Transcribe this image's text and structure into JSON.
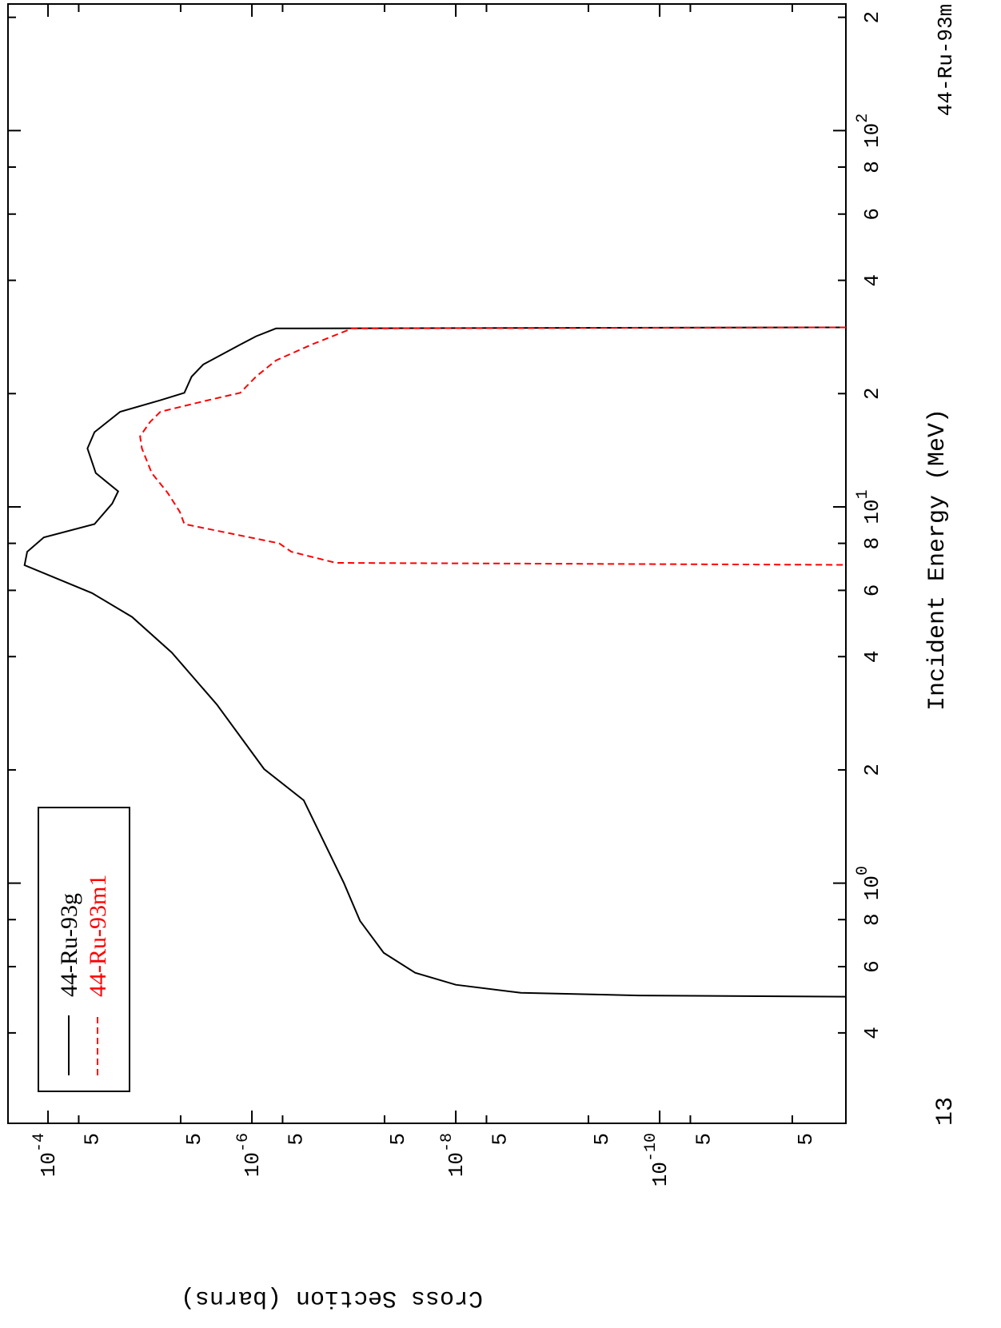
{
  "chart_data": {
    "type": "line",
    "x_label": "Incident Energy (MeV)",
    "y_label": "Cross Section (barns)",
    "annotations": [
      "44-Ru-93m",
      "13"
    ],
    "xscale": "log",
    "yscale": "log",
    "xlim": [
      0.23,
      217
    ],
    "ylim": [
      0.000247,
      1.49e-12
    ],
    "xticks": [
      {
        "value": 0.4,
        "label": "4"
      },
      {
        "value": 0.6,
        "label": "6"
      },
      {
        "value": 0.8,
        "label": "8"
      },
      {
        "value": 1,
        "label": "10",
        "exponent": "0"
      },
      {
        "value": 2,
        "label": "2"
      },
      {
        "value": 4,
        "label": "4"
      },
      {
        "value": 6,
        "label": "6"
      },
      {
        "value": 8,
        "label": "8"
      },
      {
        "value": 10,
        "label": "10",
        "exponent": "1"
      },
      {
        "value": 20,
        "label": "2"
      },
      {
        "value": 40,
        "label": "4"
      },
      {
        "value": 60,
        "label": "6"
      },
      {
        "value": 80,
        "label": "8"
      },
      {
        "value": 100,
        "label": "10",
        "exponent": "2"
      },
      {
        "value": 200,
        "label": "2"
      }
    ],
    "yticks": [
      {
        "value": 0.0001,
        "label": "10",
        "exponent": "-4"
      },
      {
        "value": 5e-05,
        "label": "5"
      },
      {
        "value": 5e-06,
        "label": "5"
      },
      {
        "value": 1e-06,
        "label": "10",
        "exponent": "-6"
      },
      {
        "value": 5e-07,
        "label": "5"
      },
      {
        "value": 5e-08,
        "label": "5"
      },
      {
        "value": 1e-08,
        "label": "10",
        "exponent": "-8"
      },
      {
        "value": 5e-09,
        "label": "5"
      },
      {
        "value": 5e-10,
        "label": "5"
      },
      {
        "value": 1e-10,
        "label": "10",
        "exponent": "-10"
      },
      {
        "value": 5e-11,
        "label": "5"
      },
      {
        "value": 5e-12,
        "label": "5"
      }
    ],
    "legend": "upper-left",
    "series": [
      {
        "name": "44-Ru-93g",
        "color": "#000000",
        "dashed": false,
        "x": [
          0.499,
          0.503,
          0.511,
          0.537,
          0.578,
          0.653,
          0.794,
          1.0,
          1.66,
          2.01,
          2.98,
          4.1,
          5.1,
          5.9,
          7.0,
          7.6,
          8.3,
          9.0,
          10.2,
          11.0,
          12.3,
          14.3,
          15.8,
          17.9,
          19.2,
          20.1,
          22.2,
          23.9,
          27.0,
          28.4,
          29.8,
          30
        ],
        "values": [
          1e-12,
          1.6e-10,
          2.3e-09,
          1e-08,
          2.5e-08,
          5.1e-08,
          8.7e-08,
          1.25e-07,
          3.1e-07,
          7.6e-07,
          2.2e-06,
          6.1e-06,
          1.5e-05,
          3.7e-05,
          0.00017,
          0.00016,
          0.00011,
          3.5e-05,
          2.35e-05,
          2.05e-05,
          3.4e-05,
          4.1e-05,
          3.5e-05,
          1.96e-05,
          7.9e-06,
          4.6e-06,
          3.9e-06,
          3e-06,
          1.3e-06,
          9.1e-07,
          5.8e-07,
          1e-12
        ]
      },
      {
        "name": "44-Ru-93m1",
        "color": "#ff0000",
        "dashed": true,
        "x": [
          7.01,
          7.1,
          7.6,
          8.0,
          9.0,
          9.7,
          10.9,
          12.3,
          14.3,
          15.4,
          16.8,
          17.9,
          19.2,
          20.1,
          22.2,
          24.5,
          27.0,
          29.8,
          30
        ],
        "values": [
          1e-12,
          1.5e-07,
          4.1e-07,
          5.4e-07,
          4.6e-06,
          5.1e-06,
          6.7e-06,
          9.6e-06,
          1.2e-05,
          1.25e-05,
          1e-05,
          7.9e-06,
          2.7e-06,
          1.3e-06,
          9.1e-07,
          5.8e-07,
          2.6e-07,
          1.04e-07,
          1e-12
        ]
      }
    ]
  }
}
